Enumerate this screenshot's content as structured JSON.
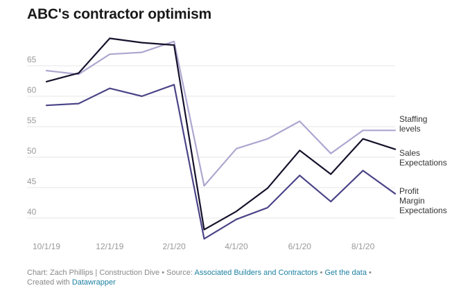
{
  "chart_data": {
    "type": "line",
    "title": "ABC's contractor optimism",
    "xlabel": "",
    "ylabel": "",
    "x": [
      "2019-10-01",
      "2019-11-01",
      "2019-12-01",
      "2020-01-01",
      "2020-02-01",
      "2020-03-01",
      "2020-04-01",
      "2020-05-01",
      "2020-06-01",
      "2020-07-01",
      "2020-08-01",
      "2020-09-01"
    ],
    "x_ticks": [
      "10/1/19",
      "12/1/19",
      "2/1/20",
      "4/1/20",
      "6/1/20",
      "8/1/20"
    ],
    "y_ticks": [
      40,
      45,
      50,
      55,
      60,
      65
    ],
    "ylim": [
      35,
      70
    ],
    "grid": true,
    "legend": "direct labels at right end of lines",
    "series": [
      {
        "name": "Staffing levels",
        "label_lines": [
          "Staffing",
          "levels"
        ],
        "color": "#aea6d0",
        "values": [
          64.2,
          63.6,
          66.9,
          67.2,
          69.0,
          45.3,
          51.4,
          53.0,
          55.9,
          50.6,
          54.4,
          54.4
        ]
      },
      {
        "name": "Sales Expectations",
        "label_lines": [
          "Sales",
          "Expectations"
        ],
        "color": "#15112b",
        "values": [
          62.4,
          63.8,
          69.5,
          68.8,
          68.4,
          38.1,
          41.1,
          44.9,
          51.1,
          47.2,
          53.0,
          51.3
        ]
      },
      {
        "name": "Profit Margin Expectations",
        "label_lines": [
          "Profit",
          "Margin",
          "Expectations"
        ],
        "color": "#4a4487",
        "values": [
          58.5,
          58.8,
          61.3,
          60.0,
          61.9,
          36.6,
          39.8,
          41.7,
          47.0,
          42.7,
          47.8,
          44.0
        ]
      }
    ]
  },
  "footer": {
    "prefix": "Chart: Zach Phillips | Construction Dive • Source: ",
    "source_link": "Associated Builders and Contractors",
    "separator1": " • ",
    "data_link": "Get the data",
    "separator2": " •",
    "created_prefix": "Created with ",
    "created_link": "Datawrapper"
  },
  "colors": {
    "link": "#1d81a2",
    "grid": "#e6e6e6",
    "axis_text": "#999999"
  }
}
